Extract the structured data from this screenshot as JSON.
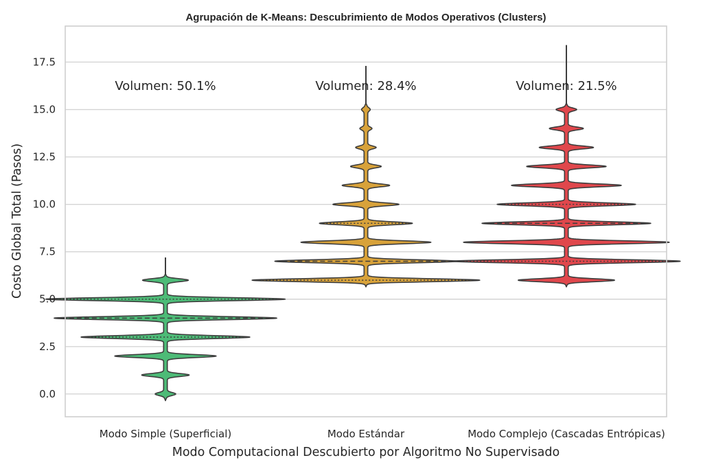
{
  "chart_data": {
    "type": "violin",
    "title": "Agrupación de K-Means: Descubrimiento de Modos Operativos (Clusters)",
    "xlabel": "Modo Computacional Descubierto por Algoritmo No Supervisado",
    "ylabel": "Costo Global Total (Pasos)",
    "ylim": [
      -1.2,
      19.4
    ],
    "yticks": [
      0,
      2.5,
      5,
      7.5,
      10,
      12.5,
      15,
      17.5
    ],
    "ytick_labels": [
      "0.0",
      "2.5",
      "5.0",
      "7.5",
      "10.0",
      "12.5",
      "15.0",
      "17.5"
    ],
    "grid": true,
    "categories": [
      "Modo Simple (Superficial)",
      "Modo Estándar",
      "Modo Complejo (Cascadas Entrópicas)"
    ],
    "series": [
      {
        "category": "Modo Simple (Superficial)",
        "color": "#4dbb77",
        "annotation": "Volumen: 50.1%",
        "volume_percent": 50.1,
        "min": 0,
        "max": 7.2,
        "q1": 3.0,
        "median": 4.0,
        "q3": 5.0,
        "density": [
          [
            0,
            0.1
          ],
          [
            1,
            0.26
          ],
          [
            2,
            0.58
          ],
          [
            3,
            0.98
          ],
          [
            4,
            1.3
          ],
          [
            5,
            1.4
          ],
          [
            6,
            0.25
          ]
        ]
      },
      {
        "category": "Modo Estándar",
        "color": "#d8a23a",
        "annotation": "Volumen: 28.4%",
        "volume_percent": 28.4,
        "min": 6.0,
        "max": 17.3,
        "q1": 6.0,
        "median": 7.0,
        "q3": 9.0,
        "density": [
          [
            6,
            1.33
          ],
          [
            7,
            1.06
          ],
          [
            8,
            0.75
          ],
          [
            9,
            0.53
          ],
          [
            10,
            0.37
          ],
          [
            11,
            0.26
          ],
          [
            12,
            0.16
          ],
          [
            13,
            0.1
          ],
          [
            14,
            0.05
          ],
          [
            15,
            0.03
          ]
        ]
      },
      {
        "category": "Modo Complejo (Cascadas Entrópicas)",
        "color": "#e0474c",
        "annotation": "Volumen: 21.5%",
        "volume_percent": 21.5,
        "min": 6.0,
        "max": 18.4,
        "q1": 7.0,
        "median": 9.0,
        "q3": 10.0,
        "density": [
          [
            6,
            0.55
          ],
          [
            7,
            1.33
          ],
          [
            8,
            1.2
          ],
          [
            9,
            0.98
          ],
          [
            10,
            0.8
          ],
          [
            11,
            0.63
          ],
          [
            12,
            0.45
          ],
          [
            13,
            0.3
          ],
          [
            14,
            0.18
          ],
          [
            15,
            0.1
          ]
        ]
      }
    ]
  }
}
